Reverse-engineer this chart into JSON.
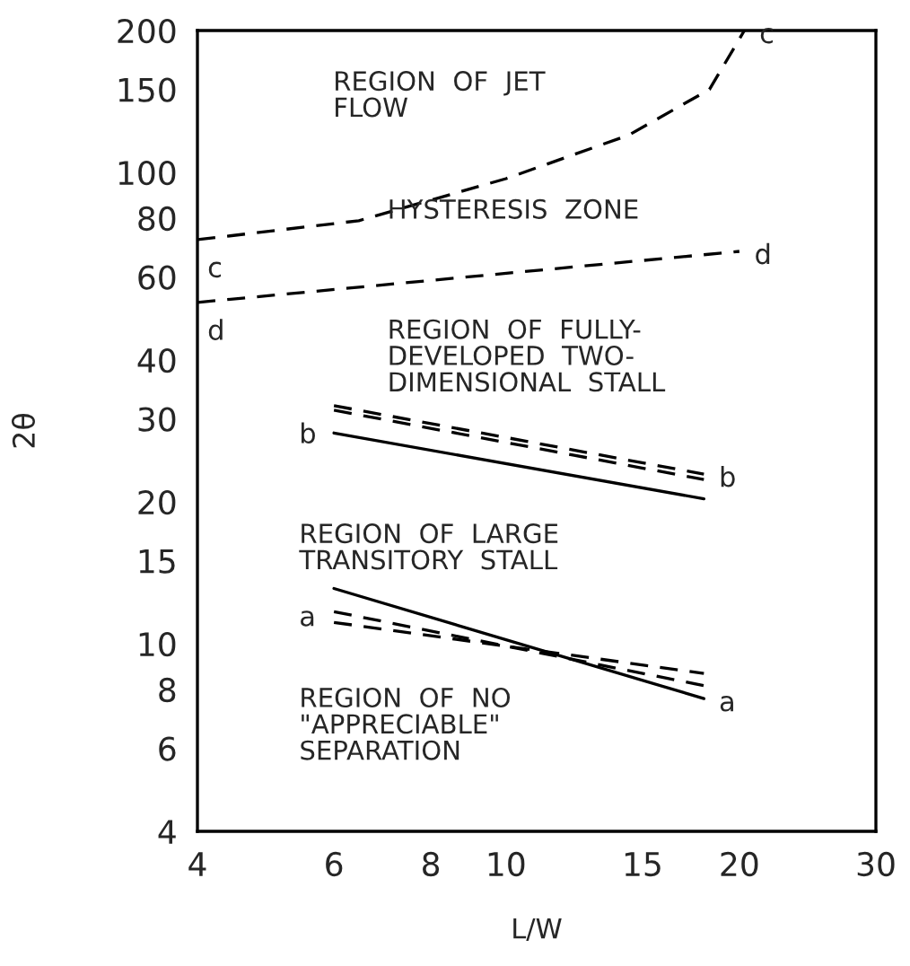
{
  "chart_data": {
    "type": "line",
    "xlabel": "L/W",
    "ylabel": "2θ",
    "log": "xy",
    "grid": false,
    "xlim": [
      4,
      30
    ],
    "ylim": [
      4,
      200
    ],
    "xticks": [
      4,
      6,
      8,
      10,
      15,
      20,
      30
    ],
    "yticks": [
      4,
      6,
      8,
      10,
      15,
      20,
      30,
      40,
      60,
      80,
      100,
      150,
      200
    ],
    "series": [
      {
        "name": "c",
        "color": "#000000",
        "line_style": "dashed",
        "x": [
          4,
          6.46,
          10,
          14.4,
          18.3,
          20.3
        ],
        "values": [
          72,
          79,
          97,
          120,
          150,
          200
        ]
      },
      {
        "name": "d",
        "color": "#000000",
        "line_style": "dashed",
        "x": [
          4,
          20
        ],
        "values": [
          53,
          68
        ]
      },
      {
        "name": "b",
        "color": "#000000",
        "line_style": "dashed",
        "x": [
          6,
          18
        ],
        "values": [
          32,
          22.9
        ]
      },
      {
        "color": "#000000",
        "line_style": "dashed",
        "x": [
          6,
          18
        ],
        "values": [
          31.3,
          22.3
        ]
      },
      {
        "color": "#000000",
        "line_style": "solid",
        "x": [
          6,
          18
        ],
        "values": [
          28,
          20.3
        ]
      },
      {
        "name": "a",
        "color": "#000000",
        "line_style": "solid",
        "x": [
          6,
          18
        ],
        "values": [
          13.1,
          7.65
        ]
      },
      {
        "color": "#000000",
        "line_style": "dashed",
        "x": [
          6,
          18
        ],
        "values": [
          11.7,
          8.15
        ]
      },
      {
        "color": "#000000",
        "line_style": "dashed",
        "x": [
          6,
          18
        ],
        "values": [
          11.1,
          8.65
        ]
      }
    ],
    "annotations": [
      "REGION  OF  JET\nFLOW",
      "HYSTERESIS  ZONE",
      "REGION  OF  FULLY-\nDEVELOPED  TWO-\nDIMENSIONAL  STALL",
      "REGION  OF  LARGE\nTRANSITORY  STALL",
      "REGION  OF  NO\n\"APPRECIABLE\"\nSEPARATION"
    ]
  }
}
